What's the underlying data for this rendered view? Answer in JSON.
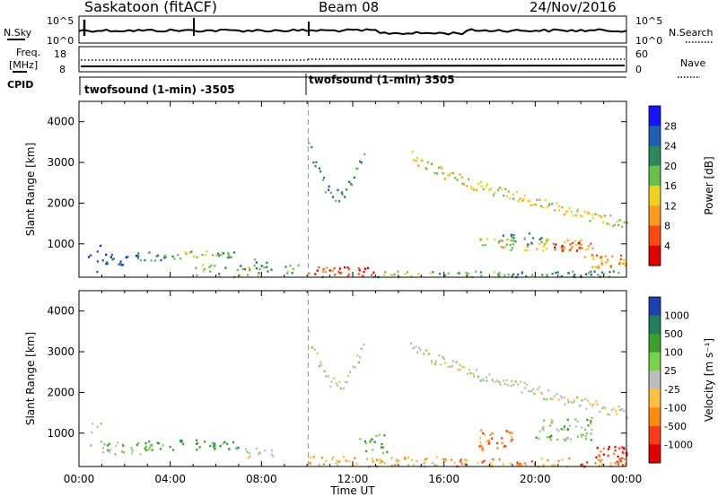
{
  "header": {
    "title": "Saskatoon (fitACF)",
    "beam": "Beam 08",
    "date": "24/Nov/2016"
  },
  "panels": {
    "nsky": {
      "label": "N.Sky",
      "right_label": "N.Search",
      "left_ticks": [
        "10^5",
        "10^0"
      ],
      "right_ticks": [
        "10^5",
        "10^0"
      ]
    },
    "freq": {
      "label_line1": "Freq.",
      "label_line2": "[MHz]",
      "left_ticks": [
        "18",
        "8"
      ],
      "right_ticks": [
        "60",
        "0"
      ],
      "right_label": "Nave"
    },
    "cpid": {
      "label": "CPID",
      "segment1": "twofsound (1-min) -3505",
      "segment2": "twofsound (1-min) 3505"
    }
  },
  "chart_data": [
    {
      "type": "heatmap",
      "name": "power",
      "ylabel": "Slant Range [km]",
      "yticks": [
        "4000",
        "3000",
        "2000",
        "1000"
      ],
      "ylim": [
        180,
        4500
      ],
      "xlim": [
        0,
        24
      ],
      "colorbar_label": "Power [dB]",
      "colorbar_ticks": [
        "28",
        "24",
        "20",
        "16",
        "12",
        "8",
        "4"
      ],
      "colors": [
        "#1414ff",
        "#1f5fb4",
        "#2c8a5a",
        "#66c04a",
        "#f0d020",
        "#ff9a1e",
        "#ff4a10",
        "#e00000"
      ],
      "regions": [
        {
          "x0": 0.3,
          "x1": 1.0,
          "y0": 250,
          "y1": 1300,
          "lvl": 1,
          "d": 0.12
        },
        {
          "x0": 1.0,
          "x1": 2.5,
          "y0": 500,
          "y1": 800,
          "lvl": 1,
          "d": 0.55
        },
        {
          "x0": 2.5,
          "x1": 4.5,
          "y0": 600,
          "y1": 820,
          "lvl": 2,
          "d": 0.55
        },
        {
          "x0": 4.5,
          "x1": 7.0,
          "y0": 650,
          "y1": 850,
          "lvl": 3,
          "d": 0.6
        },
        {
          "x0": 7.0,
          "x1": 8.5,
          "y0": 400,
          "y1": 650,
          "lvl": 2,
          "d": 0.45
        },
        {
          "x0": 5.0,
          "x1": 10.0,
          "y0": 200,
          "y1": 520,
          "lvl": 3,
          "d": 0.25
        },
        {
          "x0": 10.0,
          "x1": 13.0,
          "y0": 200,
          "y1": 450,
          "lvl": 6,
          "d": 0.6
        },
        {
          "x0": 13.0,
          "x1": 19.0,
          "y0": 200,
          "y1": 380,
          "lvl": 3,
          "d": 0.45
        },
        {
          "x0": 19.0,
          "x1": 24.0,
          "y0": 200,
          "y1": 350,
          "lvl": 2,
          "d": 0.6
        },
        {
          "x0": 17.5,
          "x1": 22.5,
          "y0": 850,
          "y1": 1150,
          "lvl": 4,
          "d": 0.5
        },
        {
          "x0": 20.8,
          "x1": 22.5,
          "y0": 850,
          "y1": 1050,
          "lvl": 6,
          "d": 0.7
        },
        {
          "x0": 22.0,
          "x1": 24.0,
          "y0": 400,
          "y1": 750,
          "lvl": 5,
          "d": 0.55
        },
        {
          "x0": 18.0,
          "x1": 20.5,
          "y0": 1000,
          "y1": 1300,
          "lvl": 2,
          "d": 0.3
        }
      ],
      "arcs": [
        {
          "x0": 10.0,
          "x1": 12.5,
          "ybase": 3400,
          "ydip": 2200,
          "thick": 300,
          "lvl": 2,
          "d": 0.7
        },
        {
          "x0": 14.5,
          "x1": 24.0,
          "ybase": 3200,
          "ydip": 1500,
          "thick": 260,
          "lvl": 4,
          "d": 0.75
        }
      ]
    },
    {
      "type": "heatmap",
      "name": "velocity",
      "ylabel": "Slant Range [km]",
      "yticks": [
        "4000",
        "3000",
        "2000",
        "1000"
      ],
      "ylim": [
        180,
        4500
      ],
      "xlim": [
        0,
        24
      ],
      "colorbar_label": "Velocity [m s⁻¹]",
      "colorbar_ticks": [
        "1000",
        "500",
        "100",
        "25",
        "-25",
        "-100",
        "-500",
        "-1000"
      ],
      "colors": [
        "#1f3fb4",
        "#1f8060",
        "#3aa028",
        "#7ad24a",
        "#bdbdbd",
        "#ffc040",
        "#ff8a10",
        "#ff3a1a",
        "#e00000"
      ],
      "regions": [
        {
          "x0": 0.3,
          "x1": 1.0,
          "y0": 250,
          "y1": 1300,
          "lvl": 3,
          "d": 0.12
        },
        {
          "x0": 1.0,
          "x1": 3.0,
          "y0": 500,
          "y1": 800,
          "lvl": 3,
          "d": 0.55
        },
        {
          "x0": 3.0,
          "x1": 7.0,
          "y0": 600,
          "y1": 850,
          "lvl": 2,
          "d": 0.55
        },
        {
          "x0": 7.0,
          "x1": 8.5,
          "y0": 400,
          "y1": 650,
          "lvl": 4,
          "d": 0.45
        },
        {
          "x0": 10.0,
          "x1": 16.0,
          "y0": 200,
          "y1": 450,
          "lvl": 5,
          "d": 0.55
        },
        {
          "x0": 16.0,
          "x1": 24.0,
          "y0": 200,
          "y1": 400,
          "lvl": 6,
          "d": 0.55
        },
        {
          "x0": 17.5,
          "x1": 19.0,
          "y0": 600,
          "y1": 1100,
          "lvl": 6,
          "d": 0.55
        },
        {
          "x0": 20.0,
          "x1": 22.5,
          "y0": 850,
          "y1": 1400,
          "lvl": 3,
          "d": 0.5
        },
        {
          "x0": 22.5,
          "x1": 24.0,
          "y0": 300,
          "y1": 700,
          "lvl": 7,
          "d": 0.6
        },
        {
          "x0": 12.0,
          "x1": 13.5,
          "y0": 500,
          "y1": 1000,
          "lvl": 2,
          "d": 0.3
        }
      ],
      "arcs": [
        {
          "x0": 10.0,
          "x1": 12.5,
          "ybase": 3400,
          "ydip": 2200,
          "thick": 300,
          "lvl": 4,
          "d": 0.8
        },
        {
          "x0": 14.5,
          "x1": 24.0,
          "ybase": 3200,
          "ydip": 1500,
          "thick": 260,
          "lvl": 4,
          "d": 0.8
        }
      ]
    }
  ],
  "xaxis": {
    "label": "Time UT",
    "ticks": [
      "00:00",
      "04:00",
      "08:00",
      "12:00",
      "16:00",
      "20:00",
      "00:00"
    ]
  }
}
